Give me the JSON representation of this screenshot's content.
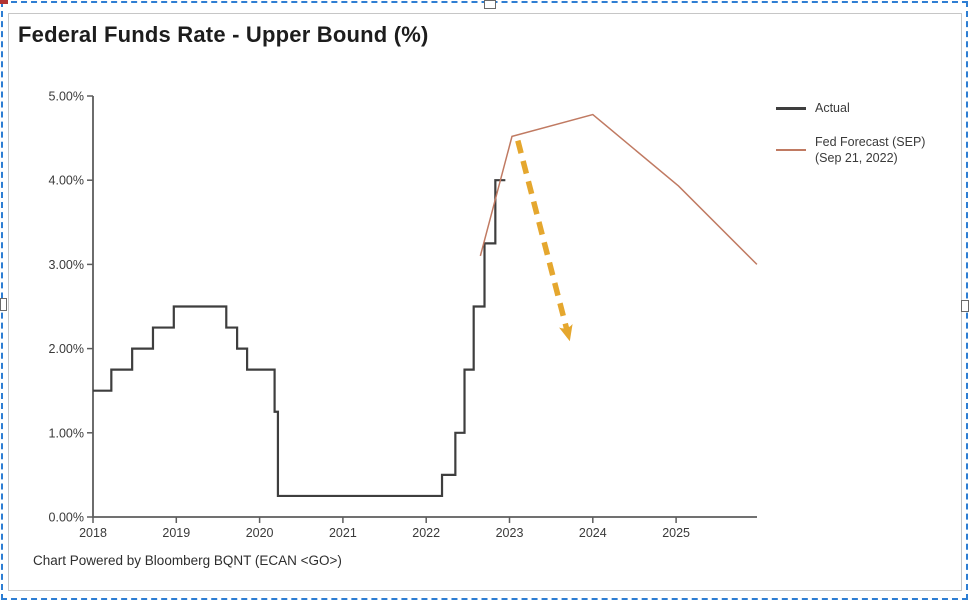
{
  "header": {
    "title": "Federal Funds Rate - Upper Bound (%)"
  },
  "footer": {
    "credit": "Chart Powered by Bloomberg BQNT (ECAN <GO>)"
  },
  "legend": {
    "items": [
      {
        "label": "Actual",
        "sublabel": "",
        "color": "#3e3e3e"
      },
      {
        "label": "Fed Forecast (SEP)",
        "sublabel": "(Sep 21, 2022)",
        "color": "#c07a62"
      }
    ]
  },
  "selection": {
    "border_color": "#2e7ed3",
    "handle_color": "#6a6a6a"
  },
  "chart_data": {
    "type": "line",
    "title": "Federal Funds Rate - Upper Bound (%)",
    "xlabel": "",
    "ylabel": "",
    "xlim": [
      2018,
      2026
    ],
    "ylim": [
      0,
      5
    ],
    "grid": false,
    "legend_position": "right",
    "y_axis": {
      "ticks": [
        {
          "value": 0,
          "label": "0.00%"
        },
        {
          "value": 1,
          "label": "1.00%"
        },
        {
          "value": 2,
          "label": "2.00%"
        },
        {
          "value": 3,
          "label": "3.00%"
        },
        {
          "value": 4,
          "label": "4.00%"
        },
        {
          "value": 5,
          "label": "5.00%"
        }
      ]
    },
    "x_axis": {
      "ticks": [
        {
          "value": 2018,
          "label": "2018"
        },
        {
          "value": 2019,
          "label": "2019"
        },
        {
          "value": 2020,
          "label": "2020"
        },
        {
          "value": 2021,
          "label": "2021"
        },
        {
          "value": 2022,
          "label": "2022"
        },
        {
          "value": 2023,
          "label": "2023"
        },
        {
          "value": 2024,
          "label": "2024"
        },
        {
          "value": 2025,
          "label": "2025"
        }
      ]
    },
    "series": [
      {
        "name": "Actual",
        "style": "step",
        "color": "#3e3e3e",
        "stroke_width": 2.2,
        "steps": [
          [
            2018.0,
            1.5
          ],
          [
            2018.22,
            1.75
          ],
          [
            2018.47,
            2.0
          ],
          [
            2018.72,
            2.25
          ],
          [
            2018.97,
            2.5
          ],
          [
            2019.6,
            2.25
          ],
          [
            2019.73,
            2.0
          ],
          [
            2019.85,
            1.75
          ],
          [
            2020.18,
            1.25
          ],
          [
            2020.22,
            0.25
          ],
          [
            2022.19,
            0.5
          ],
          [
            2022.35,
            1.0
          ],
          [
            2022.46,
            1.75
          ],
          [
            2022.57,
            2.5
          ],
          [
            2022.7,
            3.25
          ],
          [
            2022.83,
            4.0
          ]
        ],
        "end_x": 2022.95
      },
      {
        "name": "Fed Forecast (SEP) (Sep 21, 2022)",
        "style": "line",
        "color": "#c07a62",
        "stroke_width": 1.5,
        "points": [
          [
            2022.65,
            3.1
          ],
          [
            2023.03,
            4.52
          ],
          [
            2024.0,
            4.78
          ],
          [
            2025.03,
            3.93
          ],
          [
            2025.97,
            3.0
          ]
        ]
      }
    ],
    "annotation_arrow": {
      "from": [
        2023.1,
        4.47
      ],
      "to": [
        2023.7,
        2.18
      ],
      "color": "#e5a72e",
      "style": "dashed",
      "stroke_width": 5.5
    }
  }
}
